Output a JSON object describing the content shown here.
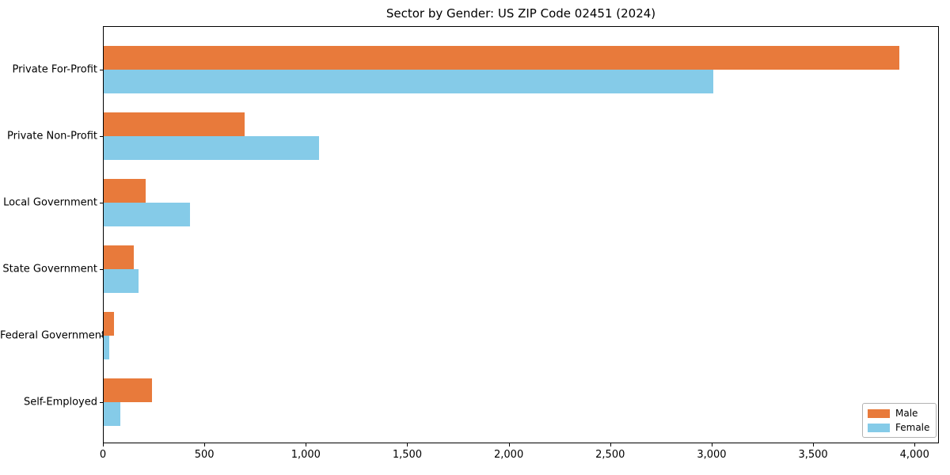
{
  "chart_data": {
    "type": "bar",
    "orientation": "horizontal",
    "title": "Sector by Gender: US ZIP Code 02451 (2024)",
    "categories": [
      "Private For-Profit",
      "Private Non-Profit",
      "Local Government",
      "State Government",
      "Federal Government",
      "Self-Employed"
    ],
    "series": [
      {
        "name": "Male",
        "color": "#e87a3b",
        "values": [
          3920,
          695,
          206,
          150,
          52,
          238
        ]
      },
      {
        "name": "Female",
        "color": "#85cbe8",
        "values": [
          3005,
          1062,
          427,
          171,
          28,
          83
        ]
      }
    ],
    "xlabel": "",
    "ylabel": "",
    "xlim": [
      0,
      4120
    ],
    "xticks": [
      0,
      500,
      1000,
      1500,
      2000,
      2500,
      3000,
      3500,
      4000
    ],
    "xtick_labels": [
      "0",
      "500",
      "1,000",
      "1,500",
      "2,000",
      "2,500",
      "3,000",
      "3,500",
      "4,000"
    ],
    "grid": false,
    "legend_position": "lower right"
  }
}
